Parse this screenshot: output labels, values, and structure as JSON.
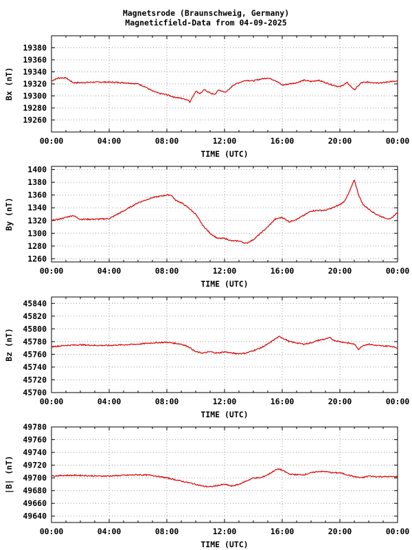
{
  "chart_data": [
    {
      "type": "line",
      "title": "Magnetsrode (Braunschweig, Germany)",
      "subtitle": "Magneticfield-Data from 04-09-2025",
      "ylabel": "Bx (nT)",
      "xlabel": "TIME (UTC)",
      "x_tick_labels": [
        "00:00",
        "04:00",
        "08:00",
        "12:00",
        "16:00",
        "20:00",
        "00:00"
      ],
      "xlim": [
        0,
        24
      ],
      "ylim": [
        19240,
        19400
      ],
      "y_ticks": [
        19260,
        19280,
        19300,
        19320,
        19340,
        19360,
        19380
      ],
      "grid": true,
      "line_color": "#dd0000",
      "x": [
        0,
        0.5,
        1,
        1.5,
        2,
        3,
        4,
        5,
        6,
        6.5,
        7,
        7.5,
        8,
        8.5,
        9,
        9.5,
        9.6,
        10,
        10.3,
        10.6,
        11,
        11.3,
        11.6,
        12,
        12.3,
        12.6,
        13,
        13.5,
        14,
        14.5,
        15,
        15.5,
        16,
        16.5,
        17,
        17.5,
        18,
        18.5,
        19,
        19.5,
        20,
        20.5,
        21,
        21.5,
        22,
        22.5,
        23,
        23.5,
        24
      ],
      "values": [
        19325,
        19330,
        19330,
        19322,
        19322,
        19323,
        19323,
        19322,
        19320,
        19315,
        19308,
        19304,
        19302,
        19298,
        19296,
        19293,
        19290,
        19308,
        19304,
        19310,
        19305,
        19302,
        19310,
        19306,
        19310,
        19318,
        19322,
        19326,
        19325,
        19328,
        19330,
        19326,
        19318,
        19320,
        19322,
        19326,
        19324,
        19326,
        19322,
        19318,
        19315,
        19322,
        19310,
        19322,
        19323,
        19322,
        19322,
        19324,
        19324
      ]
    },
    {
      "type": "line",
      "ylabel": "By (nT)",
      "xlabel": "TIME (UTC)",
      "x_tick_labels": [
        "00:00",
        "04:00",
        "08:00",
        "12:00",
        "16:00",
        "20:00",
        "00:00"
      ],
      "xlim": [
        0,
        24
      ],
      "ylim": [
        1255,
        1405
      ],
      "y_ticks": [
        1260,
        1280,
        1300,
        1320,
        1340,
        1360,
        1380,
        1400
      ],
      "grid": true,
      "line_color": "#dd0000",
      "x": [
        0,
        0.5,
        1,
        1.5,
        2,
        3,
        4,
        5,
        6,
        7,
        8,
        8.3,
        8.6,
        9,
        9.5,
        10,
        10.5,
        11,
        11.5,
        12,
        12.5,
        13,
        13.5,
        14,
        14.5,
        15,
        15.5,
        16,
        16.5,
        17,
        17.5,
        18,
        18.5,
        19,
        19.5,
        20,
        20.3,
        20.6,
        21,
        21.3,
        21.6,
        22,
        22.5,
        23,
        23.5,
        24
      ],
      "values": [
        1320,
        1322,
        1325,
        1328,
        1322,
        1322,
        1323,
        1335,
        1348,
        1356,
        1360,
        1360,
        1352,
        1348,
        1340,
        1330,
        1312,
        1300,
        1292,
        1292,
        1288,
        1288,
        1284,
        1290,
        1300,
        1310,
        1322,
        1325,
        1318,
        1322,
        1328,
        1335,
        1336,
        1336,
        1340,
        1345,
        1350,
        1362,
        1384,
        1360,
        1345,
        1338,
        1330,
        1325,
        1322,
        1333
      ]
    },
    {
      "type": "line",
      "ylabel": "Bz (nT)",
      "xlabel": "TIME (UTC)",
      "x_tick_labels": [
        "00:00",
        "04:00",
        "08:00",
        "12:00",
        "16:00",
        "20:00",
        "00:00"
      ],
      "xlim": [
        0,
        24
      ],
      "ylim": [
        45700,
        45850
      ],
      "y_ticks": [
        45700,
        45720,
        45740,
        45760,
        45780,
        45800,
        45820,
        45840
      ],
      "grid": true,
      "line_color": "#dd0000",
      "x": [
        0,
        1,
        2,
        3,
        4,
        5,
        6,
        7,
        8,
        9,
        9.5,
        10,
        10.5,
        11,
        11.5,
        12,
        12.5,
        13,
        13.5,
        14,
        14.5,
        15,
        15.5,
        15.8,
        16,
        16.5,
        17,
        17.5,
        18,
        18.5,
        19,
        19.3,
        19.6,
        20,
        20.5,
        21,
        21.3,
        21.6,
        22,
        22.5,
        23,
        23.5,
        24
      ],
      "values": [
        45772,
        45774,
        45775,
        45774,
        45774,
        45775,
        45776,
        45778,
        45779,
        45776,
        45772,
        45764,
        45762,
        45764,
        45762,
        45764,
        45762,
        45761,
        45762,
        45766,
        45770,
        45776,
        45784,
        45788,
        45786,
        45780,
        45778,
        45776,
        45778,
        45782,
        45784,
        45786,
        45782,
        45780,
        45778,
        45776,
        45768,
        45774,
        45776,
        45774,
        45773,
        45773,
        45770
      ]
    },
    {
      "type": "line",
      "ylabel": "|B| (nT)",
      "xlabel": "TIME (UTC)",
      "x_tick_labels": [
        "00:00",
        "04:00",
        "08:00",
        "12:00",
        "16:00",
        "20:00",
        "00:00"
      ],
      "xlim": [
        0,
        24
      ],
      "ylim": [
        49630,
        49780
      ],
      "y_ticks": [
        49640,
        49660,
        49680,
        49700,
        49720,
        49740,
        49760,
        49780
      ],
      "grid": true,
      "line_color": "#dd0000",
      "x": [
        0,
        1,
        2,
        3,
        4,
        5,
        6,
        7,
        8,
        9,
        10,
        10.5,
        11,
        11.5,
        12,
        12.5,
        13,
        13.5,
        14,
        14.5,
        15,
        15.5,
        15.8,
        16,
        16.5,
        17,
        17.5,
        18,
        18.5,
        19,
        19.5,
        20,
        20.5,
        21,
        21.5,
        22,
        22.5,
        23,
        23.5,
        24
      ],
      "values": [
        49703,
        49704,
        49704,
        49703,
        49703,
        49704,
        49705,
        49704,
        49700,
        49695,
        49690,
        49687,
        49686,
        49688,
        49690,
        49687,
        49690,
        49695,
        49700,
        49700,
        49705,
        49712,
        49714,
        49712,
        49706,
        49705,
        49705,
        49708,
        49710,
        49710,
        49708,
        49708,
        49705,
        49702,
        49700,
        49703,
        49702,
        49702,
        49702,
        49702
      ]
    }
  ]
}
